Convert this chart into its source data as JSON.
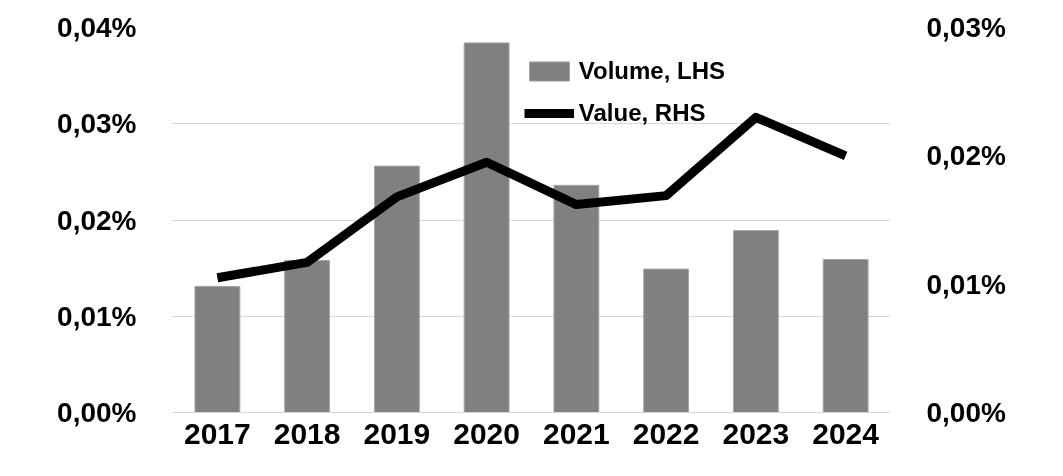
{
  "chart_data": {
    "type": "bar",
    "categories": [
      "2017",
      "2018",
      "2019",
      "2020",
      "2021",
      "2022",
      "2023",
      "2024"
    ],
    "series": [
      {
        "name": "Volume, LHS",
        "color": "#808080",
        "values": [
          0.0131,
          0.0158,
          0.0256,
          0.0384,
          0.0236,
          0.0149,
          0.0189,
          0.0159
        ]
      },
      {
        "name": "Value, RHS",
        "type": "line",
        "axis": "y2",
        "color": "#000000",
        "values": [
          0.0105,
          0.0117,
          0.0168,
          0.0195,
          0.0162,
          0.0169,
          0.023,
          0.02
        ]
      }
    ],
    "ylim": [
      0,
      0.04
    ],
    "yticks": [
      {
        "value": 0,
        "label": "0,00%"
      },
      {
        "value": 0.01,
        "label": "0,01%"
      },
      {
        "value": 0.02,
        "label": "0,02%"
      },
      {
        "value": 0.03,
        "label": "0,03%"
      },
      {
        "value": 0.04,
        "label": "0,04%"
      }
    ],
    "y2lim": [
      0,
      0.03
    ],
    "y2ticks": [
      {
        "value": 0,
        "label": "0,00%"
      },
      {
        "value": 0.01,
        "label": "0,01%"
      },
      {
        "value": 0.02,
        "label": "0,02%"
      },
      {
        "value": 0.03,
        "label": "0,03%"
      }
    ],
    "grid": "y",
    "legend": "top",
    "marker": "none",
    "line_style": "solid"
  }
}
